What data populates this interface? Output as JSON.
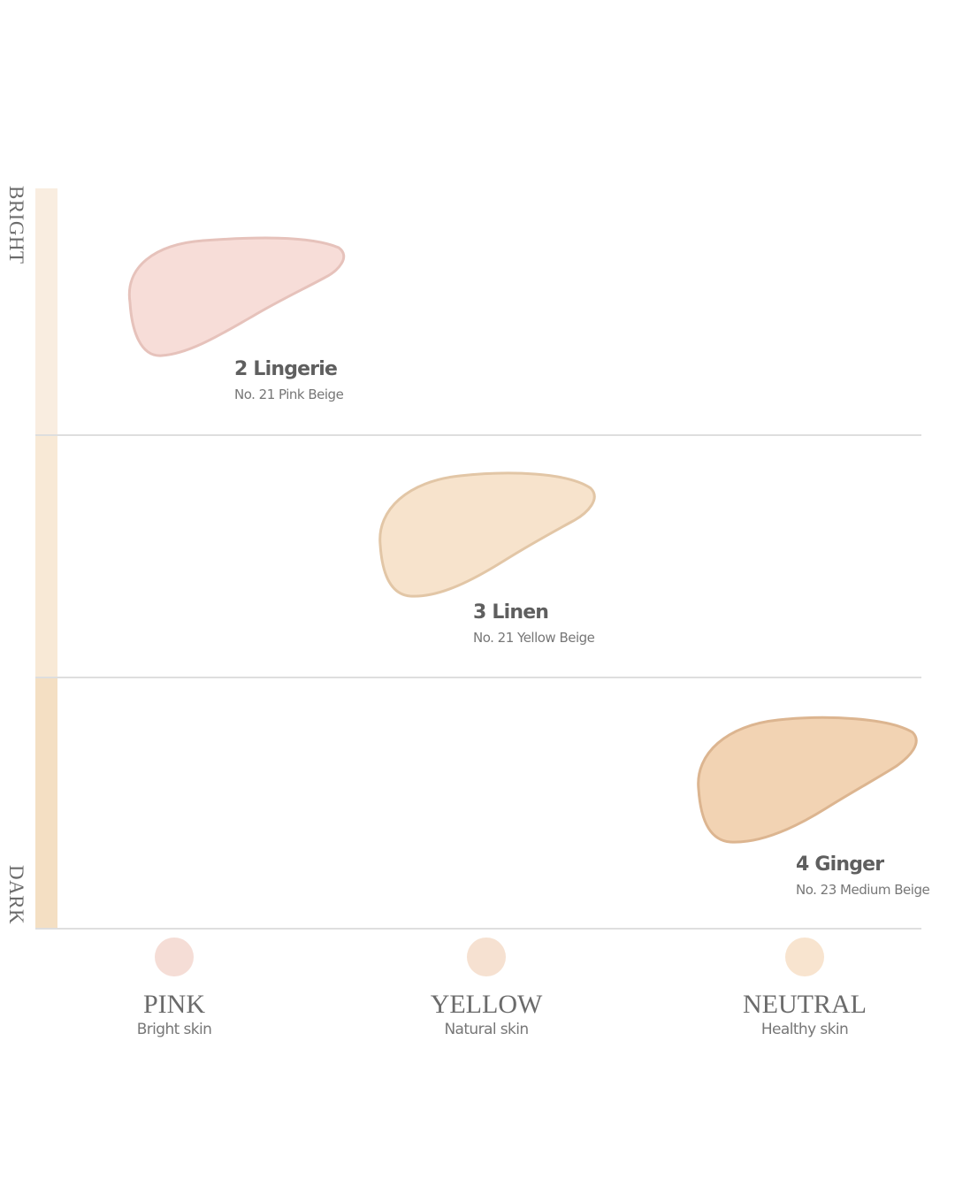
{
  "axis": {
    "top_label": "BRIGHT",
    "bottom_label": "DARK",
    "segment_colors": [
      "#f9ede0",
      "#f8e9d6",
      "#f4dfc3"
    ]
  },
  "shades": [
    {
      "name": "2 Lingerie",
      "subtitle": "No. 21 Pink Beige",
      "color": "#f7ddd8",
      "edge": "#e6c2bb"
    },
    {
      "name": "3 Linen",
      "subtitle": "No. 21 Yellow Beige",
      "color": "#f7e3cc",
      "edge": "#e2c6a6"
    },
    {
      "name": "4 Ginger",
      "subtitle": "No. 23 Medium Beige",
      "color": "#f2d3b3",
      "edge": "#dcb590"
    }
  ],
  "tones": [
    {
      "name": "PINK",
      "description": "Bright skin",
      "color": "#f5ddd6"
    },
    {
      "name": "YELLOW",
      "description": "Natural skin",
      "color": "#f6e1d1"
    },
    {
      "name": "NEUTRAL",
      "description": "Healthy skin",
      "color": "#f8e4cf"
    }
  ]
}
